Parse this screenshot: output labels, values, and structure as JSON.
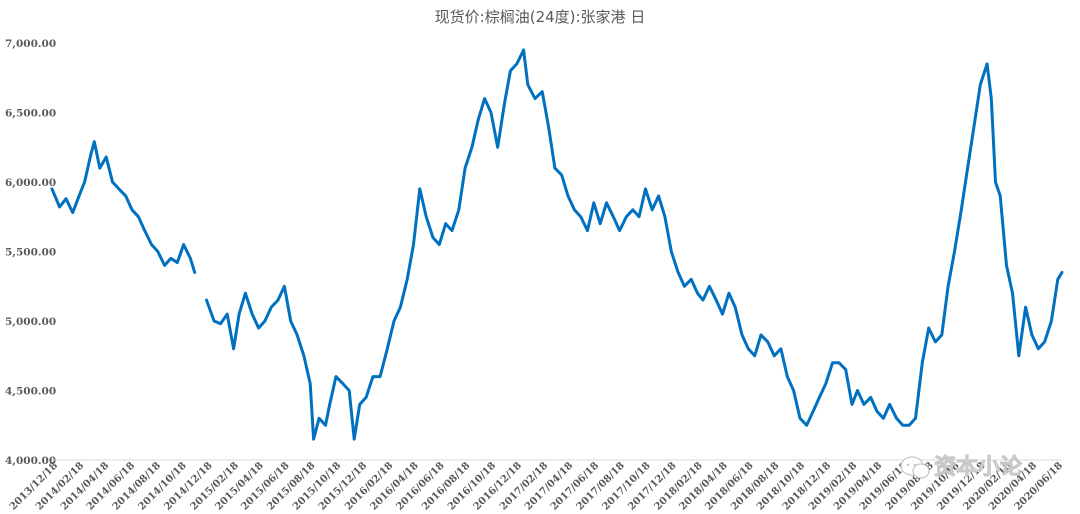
{
  "watermark": "资本小论",
  "chart_data": {
    "type": "line",
    "title": "现货价:棕榈油(24度):张家港 日",
    "xlabel": "",
    "ylabel": "",
    "ylim": [
      4000,
      7000
    ],
    "yticks": [
      "4,000.00",
      "4,500.00",
      "5,000.00",
      "5,500.00",
      "6,000.00",
      "6,500.00",
      "7,000.00"
    ],
    "x_tick_labels": [
      "2013/12/18",
      "2014/02/18",
      "2014/04/18",
      "2014/06/18",
      "2014/08/18",
      "2014/10/18",
      "2014/12/18",
      "2015/02/18",
      "2015/04/18",
      "2015/06/18",
      "2015/08/18",
      "2015/10/18",
      "2015/12/18",
      "2016/02/18",
      "2016/04/18",
      "2016/06/18",
      "2016/08/18",
      "2016/10/18",
      "2016/12/18",
      "2017/02/18",
      "2017/04/18",
      "2017/06/18",
      "2017/08/18",
      "2017/10/18",
      "2017/12/18",
      "2018/02/18",
      "2018/04/18",
      "2018/06/18",
      "2018/08/18",
      "2018/10/18",
      "2018/12/18",
      "2019/02/18",
      "2019/04/18",
      "2019/06/18",
      "2019/08/18",
      "2019/10/18",
      "2019/12/18",
      "2020/02/18",
      "2020/04/18",
      "2020/06/18"
    ],
    "grid": false,
    "legend": "none",
    "line_color": "#0070C0",
    "series": [
      {
        "segments": [
          [
            [
              "2013-12-18",
              5950
            ],
            [
              "2014-01-05",
              5820
            ],
            [
              "2014-01-20",
              5880
            ],
            [
              "2014-02-05",
              5780
            ],
            [
              "2014-02-20",
              5900
            ],
            [
              "2014-03-05",
              6000
            ],
            [
              "2014-03-20",
              6200
            ],
            [
              "2014-03-28",
              6290
            ],
            [
              "2014-04-10",
              6100
            ],
            [
              "2014-04-25",
              6180
            ],
            [
              "2014-05-10",
              6000
            ],
            [
              "2014-05-25",
              5950
            ],
            [
              "2014-06-10",
              5900
            ],
            [
              "2014-06-25",
              5800
            ],
            [
              "2014-07-10",
              5750
            ],
            [
              "2014-07-25",
              5650
            ],
            [
              "2014-08-10",
              5550
            ],
            [
              "2014-08-25",
              5500
            ],
            [
              "2014-09-10",
              5400
            ],
            [
              "2014-09-25",
              5450
            ],
            [
              "2014-10-10",
              5420
            ],
            [
              "2014-10-25",
              5550
            ],
            [
              "2014-11-10",
              5450
            ],
            [
              "2014-11-20",
              5350
            ]
          ],
          [
            [
              "2014-12-18",
              5150
            ],
            [
              "2015-01-05",
              5000
            ],
            [
              "2015-01-20",
              4980
            ],
            [
              "2015-02-05",
              5050
            ],
            [
              "2015-02-20",
              4800
            ],
            [
              "2015-03-05",
              5050
            ],
            [
              "2015-03-20",
              5200
            ],
            [
              "2015-04-05",
              5050
            ],
            [
              "2015-04-20",
              4950
            ],
            [
              "2015-05-05",
              5000
            ],
            [
              "2015-05-20",
              5100
            ],
            [
              "2015-06-05",
              5150
            ],
            [
              "2015-06-20",
              5250
            ],
            [
              "2015-07-05",
              5000
            ],
            [
              "2015-07-20",
              4900
            ],
            [
              "2015-08-05",
              4750
            ],
            [
              "2015-08-20",
              4550
            ],
            [
              "2015-08-28",
              4150
            ],
            [
              "2015-09-10",
              4300
            ],
            [
              "2015-09-25",
              4250
            ],
            [
              "2015-10-05",
              4400
            ],
            [
              "2015-10-20",
              4600
            ],
            [
              "2015-11-05",
              4550
            ],
            [
              "2015-11-20",
              4500
            ],
            [
              "2015-12-02",
              4150
            ],
            [
              "2015-12-15",
              4400
            ],
            [
              "2015-12-30",
              4450
            ],
            [
              "2016-01-15",
              4600
            ],
            [
              "2016-02-01",
              4600
            ],
            [
              "2016-02-18",
              4800
            ],
            [
              "2016-03-05",
              5000
            ],
            [
              "2016-03-20",
              5100
            ],
            [
              "2016-04-05",
              5300
            ],
            [
              "2016-04-20",
              5550
            ],
            [
              "2016-05-05",
              5950
            ],
            [
              "2016-05-20",
              5750
            ],
            [
              "2016-06-05",
              5600
            ],
            [
              "2016-06-20",
              5550
            ],
            [
              "2016-07-05",
              5700
            ],
            [
              "2016-07-20",
              5650
            ],
            [
              "2016-08-05",
              5800
            ],
            [
              "2016-08-20",
              6100
            ],
            [
              "2016-09-05",
              6250
            ],
            [
              "2016-09-20",
              6450
            ],
            [
              "2016-10-05",
              6600
            ],
            [
              "2016-10-20",
              6500
            ],
            [
              "2016-11-05",
              6250
            ],
            [
              "2016-11-20",
              6550
            ],
            [
              "2016-12-05",
              6800
            ],
            [
              "2016-12-20",
              6850
            ],
            [
              "2017-01-05",
              6950
            ],
            [
              "2017-01-15",
              6700
            ],
            [
              "2017-02-01",
              6600
            ],
            [
              "2017-02-18",
              6650
            ],
            [
              "2017-03-05",
              6400
            ],
            [
              "2017-03-20",
              6100
            ],
            [
              "2017-04-05",
              6050
            ],
            [
              "2017-04-20",
              5900
            ],
            [
              "2017-05-05",
              5800
            ],
            [
              "2017-05-20",
              5750
            ],
            [
              "2017-06-05",
              5650
            ],
            [
              "2017-06-20",
              5850
            ],
            [
              "2017-07-05",
              5700
            ],
            [
              "2017-07-20",
              5850
            ],
            [
              "2017-08-05",
              5750
            ],
            [
              "2017-08-20",
              5650
            ],
            [
              "2017-09-05",
              5750
            ],
            [
              "2017-09-20",
              5800
            ],
            [
              "2017-10-05",
              5750
            ],
            [
              "2017-10-20",
              5950
            ],
            [
              "2017-11-05",
              5800
            ],
            [
              "2017-11-20",
              5900
            ],
            [
              "2017-12-05",
              5750
            ],
            [
              "2017-12-20",
              5500
            ],
            [
              "2018-01-05",
              5350
            ],
            [
              "2018-01-20",
              5250
            ],
            [
              "2018-02-05",
              5300
            ],
            [
              "2018-02-20",
              5200
            ],
            [
              "2018-03-05",
              5150
            ],
            [
              "2018-03-20",
              5250
            ],
            [
              "2018-04-05",
              5150
            ],
            [
              "2018-04-20",
              5050
            ],
            [
              "2018-05-05",
              5200
            ],
            [
              "2018-05-20",
              5100
            ],
            [
              "2018-06-05",
              4900
            ],
            [
              "2018-06-20",
              4800
            ],
            [
              "2018-07-05",
              4750
            ],
            [
              "2018-07-20",
              4900
            ],
            [
              "2018-08-05",
              4850
            ],
            [
              "2018-08-20",
              4750
            ],
            [
              "2018-09-05",
              4800
            ],
            [
              "2018-09-20",
              4600
            ],
            [
              "2018-10-05",
              4500
            ],
            [
              "2018-10-20",
              4300
            ],
            [
              "2018-11-05",
              4250
            ],
            [
              "2018-11-20",
              4350
            ],
            [
              "2018-12-05",
              4450
            ],
            [
              "2018-12-20",
              4550
            ],
            [
              "2019-01-05",
              4700
            ],
            [
              "2019-01-20",
              4700
            ],
            [
              "2019-02-05",
              4650
            ],
            [
              "2019-02-20",
              4400
            ],
            [
              "2019-03-05",
              4500
            ],
            [
              "2019-03-20",
              4400
            ],
            [
              "2019-04-05",
              4450
            ],
            [
              "2019-04-20",
              4350
            ],
            [
              "2019-05-05",
              4300
            ],
            [
              "2019-05-20",
              4400
            ],
            [
              "2019-06-05",
              4300
            ],
            [
              "2019-06-20",
              4250
            ],
            [
              "2019-07-05",
              4250
            ],
            [
              "2019-07-20",
              4300
            ],
            [
              "2019-08-05",
              4700
            ],
            [
              "2019-08-20",
              4950
            ],
            [
              "2019-09-05",
              4850
            ],
            [
              "2019-09-20",
              4900
            ],
            [
              "2019-10-05",
              5250
            ],
            [
              "2019-10-20",
              5500
            ],
            [
              "2019-11-05",
              5800
            ],
            [
              "2019-11-20",
              6100
            ],
            [
              "2019-12-05",
              6400
            ],
            [
              "2019-12-20",
              6700
            ],
            [
              "2020-01-05",
              6850
            ],
            [
              "2020-01-15",
              6600
            ],
            [
              "2020-01-25",
              6000
            ],
            [
              "2020-02-05",
              5900
            ],
            [
              "2020-02-20",
              5400
            ],
            [
              "2020-03-05",
              5200
            ],
            [
              "2020-03-20",
              4750
            ],
            [
              "2020-04-05",
              5100
            ],
            [
              "2020-04-20",
              4900
            ],
            [
              "2020-05-05",
              4800
            ],
            [
              "2020-05-20",
              4850
            ],
            [
              "2020-06-05",
              5000
            ],
            [
              "2020-06-20",
              5300
            ],
            [
              "2020-06-30",
              5350
            ]
          ]
        ]
      }
    ]
  }
}
